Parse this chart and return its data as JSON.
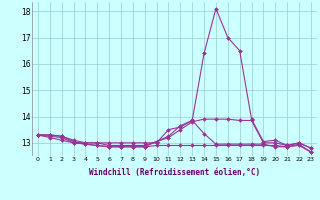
{
  "xlabel": "Windchill (Refroidissement éolien,°C)",
  "x_values": [
    0,
    1,
    2,
    3,
    4,
    5,
    6,
    7,
    8,
    9,
    10,
    11,
    12,
    13,
    14,
    15,
    16,
    17,
    18,
    19,
    20,
    21,
    22,
    23
  ],
  "lines": [
    [
      13.3,
      13.3,
      13.25,
      13.1,
      13.0,
      13.0,
      13.0,
      13.0,
      13.0,
      13.0,
      13.0,
      13.5,
      13.6,
      13.85,
      16.4,
      18.1,
      17.0,
      16.5,
      13.9,
      13.05,
      13.1,
      12.9,
      13.0,
      12.8
    ],
    [
      13.3,
      13.2,
      13.1,
      13.0,
      13.0,
      13.0,
      12.9,
      12.9,
      12.9,
      12.9,
      13.05,
      13.2,
      13.5,
      13.8,
      13.9,
      13.9,
      13.9,
      13.85,
      13.85,
      13.0,
      13.0,
      12.9,
      13.0,
      12.8
    ],
    [
      13.3,
      13.3,
      13.25,
      13.05,
      12.95,
      12.9,
      12.85,
      12.85,
      12.85,
      12.85,
      12.9,
      12.9,
      12.9,
      12.9,
      12.9,
      12.9,
      12.9,
      12.9,
      12.9,
      12.9,
      12.9,
      12.85,
      12.9,
      12.65
    ],
    [
      13.3,
      13.25,
      13.2,
      13.0,
      12.95,
      12.9,
      12.85,
      12.85,
      12.85,
      12.85,
      13.05,
      13.25,
      13.65,
      13.85,
      13.35,
      12.95,
      12.95,
      12.95,
      12.95,
      12.95,
      12.85,
      12.85,
      12.95,
      12.65
    ]
  ],
  "line_color": "#993399",
  "bg_color": "#ccffff",
  "grid_color": "#99cccc",
  "ylim": [
    12.5,
    18.35
  ],
  "yticks": [
    13,
    14,
    15,
    16,
    17,
    18
  ],
  "xtick_fontsize": 4.5,
  "ytick_fontsize": 5.5,
  "xlabel_fontsize": 5.5,
  "marker": "D",
  "marker_size": 2.0,
  "line_width": 0.8
}
